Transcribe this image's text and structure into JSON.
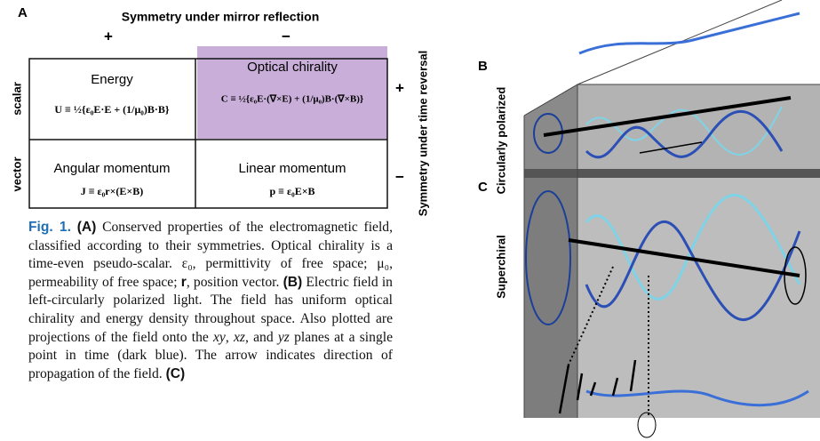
{
  "panel_a": {
    "label": "A",
    "mirror_heading": "Symmetry under mirror reflection",
    "mirror_plus": "+",
    "mirror_minus": "−",
    "time_heading": "Symmetry under time reversal",
    "time_plus": "+",
    "time_minus": "−",
    "row_labels": [
      "scalar",
      "vector"
    ],
    "cells": [
      {
        "name": "Energy",
        "formula": "U ≡ ½{ε₀E·E + (1/μ₀)B·B}"
      },
      {
        "name": "Optical chirality",
        "formula": "C ≡ ½{ε₀E·(∇×E) + (1/μ₀)B·(∇×B)}"
      },
      {
        "name": "Angular momentum",
        "formula": "J ≡ ε₀r×(E×B)"
      },
      {
        "name": "Linear momentum",
        "formula": "p ≡ ε₀E×B"
      }
    ]
  },
  "panel_b": {
    "label": "B",
    "side_label": "Circularly polarized"
  },
  "panel_c": {
    "label": "C",
    "side_label": "Superchiral"
  },
  "caption": {
    "fig_label": "Fig. 1.",
    "parts": [
      "(A)",
      " Conserved properties of the electromagnetic field, classified according to their symmetries. Optical chirality is a time-even pseudo-scalar. ε₀, permittivity of free space; μ₀, permeability of free space; ",
      "r",
      ", position vector. ",
      "(B)",
      " Electric field in left-circularly polarized light. The field has uniform optical chirality and energy density throughout space. Also plotted are projections of the field onto the ",
      "xy",
      ", ",
      "xz",
      ", and ",
      "yz",
      " planes at a single point in time (dark blue). The arrow indicates direction of propagation of the field. ",
      "(C)"
    ]
  }
}
